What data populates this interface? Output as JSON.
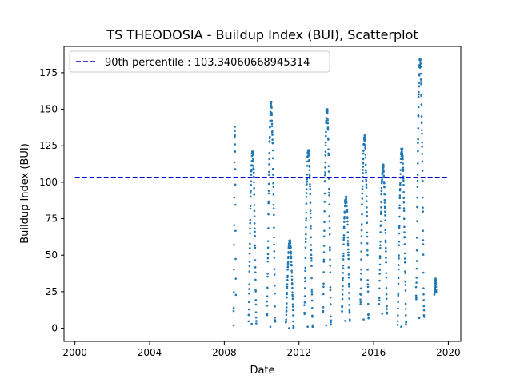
{
  "chart_data": {
    "type": "scatter",
    "title": "TS THEODOSIA - Buildup Index (BUI), Scatterplot",
    "xlabel": "Date",
    "ylabel": "Buildup Index (BUI)",
    "xlim": [
      "1999-06-01",
      "2020-09-01"
    ],
    "ylim": [
      -9,
      193
    ],
    "x_ticks": [
      "2000-01-01",
      "2004-01-01",
      "2008-01-01",
      "2012-01-01",
      "2016-01-01",
      "2020-01-01"
    ],
    "x_tick_labels": [
      "2000",
      "2004",
      "2008",
      "2012",
      "2016",
      "2020"
    ],
    "y_ticks": [
      0,
      25,
      50,
      75,
      100,
      125,
      150,
      175
    ],
    "y_tick_labels": [
      "0",
      "25",
      "50",
      "75",
      "100",
      "125",
      "150",
      "175"
    ],
    "grid": false,
    "legend_position": "upper-left",
    "colors": {
      "points": "#1f77b4",
      "threshold": "#0000cd"
    },
    "reference_line": {
      "label": "90th percentile : 103.34060668945314",
      "y": 103.34060668945314,
      "x_start": "2000-01-01",
      "x_end": "2020-01-01",
      "style": "dashed"
    },
    "series": [
      {
        "seasons": [
          {
            "start": "2008-07-01",
            "end": "2008-08-15",
            "min": 2,
            "max": 138
          },
          {
            "start": "2009-04-20",
            "end": "2009-09-20",
            "min": 3,
            "max": 121
          },
          {
            "start": "2010-04-15",
            "end": "2010-09-25",
            "min": 1,
            "max": 155
          },
          {
            "start": "2011-04-20",
            "end": "2011-09-20",
            "min": 0,
            "max": 60
          },
          {
            "start": "2012-04-15",
            "end": "2012-09-25",
            "min": 1,
            "max": 122
          },
          {
            "start": "2013-04-15",
            "end": "2013-09-20",
            "min": 2,
            "max": 150
          },
          {
            "start": "2014-04-20",
            "end": "2014-09-25",
            "min": 5,
            "max": 90
          },
          {
            "start": "2015-04-15",
            "end": "2015-09-25",
            "min": 6,
            "max": 132
          },
          {
            "start": "2016-04-15",
            "end": "2016-09-20",
            "min": 10,
            "max": 112
          },
          {
            "start": "2017-04-15",
            "end": "2017-09-30",
            "min": 1,
            "max": 123
          },
          {
            "start": "2018-04-10",
            "end": "2018-09-15",
            "min": 7,
            "max": 184
          },
          {
            "start": "2019-04-10",
            "end": "2019-05-10",
            "min": 23,
            "max": 34
          }
        ]
      }
    ]
  }
}
